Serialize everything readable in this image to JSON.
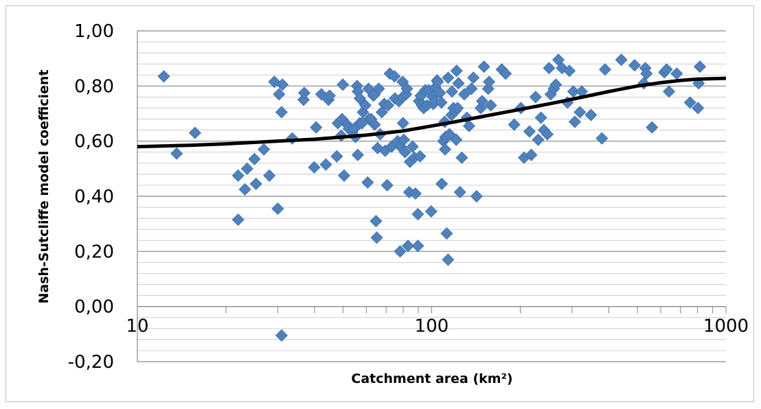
{
  "chart_data": {
    "type": "scatter",
    "title": "",
    "xlabel": "Catchment area (km²)",
    "ylabel": "Nash-Sutcliffe model coefficient",
    "x_scale": "log",
    "xlim": [
      10,
      1000
    ],
    "ylim": [
      -0.2,
      1.0
    ],
    "x_tick_labels": [
      "10",
      "100",
      "1000"
    ],
    "y_tick_labels": [
      "-0,20",
      "0,00",
      "0,20",
      "0,40",
      "0,60",
      "0,80",
      "1,00"
    ],
    "y_ticks": [
      -0.2,
      0.0,
      0.2,
      0.4,
      0.6,
      0.8,
      1.0
    ],
    "x_ticks": [
      10,
      100,
      1000
    ],
    "grid": true,
    "marker_color": "#4f81bd",
    "trend_color": "#000000",
    "series": [
      {
        "points": [
          [
            12.3,
            0.835
          ],
          [
            13.6,
            0.555
          ],
          [
            15.7,
            0.63
          ],
          [
            22.0,
            0.315
          ],
          [
            22.0,
            0.475
          ],
          [
            23.2,
            0.425
          ],
          [
            23.6,
            0.5
          ],
          [
            25.0,
            0.535
          ],
          [
            25.3,
            0.445
          ],
          [
            26.9,
            0.57
          ],
          [
            28.1,
            0.475
          ],
          [
            29.2,
            0.815
          ],
          [
            30.0,
            0.355
          ],
          [
            30.3,
            0.77
          ],
          [
            30.9,
            0.705
          ],
          [
            31.1,
            0.805
          ],
          [
            30.9,
            -0.105
          ],
          [
            33.6,
            0.61
          ],
          [
            36.7,
            0.75
          ],
          [
            36.9,
            0.775
          ],
          [
            39.9,
            0.505
          ],
          [
            40.5,
            0.65
          ],
          [
            42.2,
            0.77
          ],
          [
            43.7,
            0.515
          ],
          [
            44.6,
            0.75
          ],
          [
            45.0,
            0.765
          ],
          [
            47.6,
            0.545
          ],
          [
            48.0,
            0.665
          ],
          [
            49.3,
            0.62
          ],
          [
            49.6,
            0.68
          ],
          [
            49.9,
            0.805
          ],
          [
            50.4,
            0.475
          ],
          [
            51.6,
            0.66
          ],
          [
            52.3,
            0.645
          ],
          [
            53.7,
            0.635
          ],
          [
            54.5,
            0.645
          ],
          [
            55.1,
            0.615
          ],
          [
            55.8,
            0.8
          ],
          [
            56.1,
            0.78
          ],
          [
            56.1,
            0.55
          ],
          [
            57.0,
            0.755
          ],
          [
            57.0,
            0.665
          ],
          [
            58.0,
            0.665
          ],
          [
            58.4,
            0.705
          ],
          [
            59.5,
            0.73
          ],
          [
            60.6,
            0.45
          ],
          [
            61.0,
            0.79
          ],
          [
            61.3,
            0.68
          ],
          [
            62.3,
            0.68
          ],
          [
            63.4,
            0.765
          ],
          [
            64.0,
            0.66
          ],
          [
            64.0,
            0.77
          ],
          [
            64.7,
            0.31
          ],
          [
            65.1,
            0.25
          ],
          [
            65.5,
            0.575
          ],
          [
            66.1,
            0.79
          ],
          [
            66.8,
            0.625
          ],
          [
            67.7,
            0.705
          ],
          [
            69.0,
            0.735
          ],
          [
            69.5,
            0.565
          ],
          [
            70.6,
            0.44
          ],
          [
            71.1,
            0.73
          ],
          [
            72.1,
            0.845
          ],
          [
            73.1,
            0.58
          ],
          [
            74.8,
            0.835
          ],
          [
            75.0,
            0.755
          ],
          [
            76.6,
            0.6
          ],
          [
            77.4,
            0.745
          ],
          [
            78.1,
            0.2
          ],
          [
            78.4,
            0.58
          ],
          [
            79.7,
            0.76
          ],
          [
            79.7,
            0.815
          ],
          [
            79.9,
            0.665
          ],
          [
            80.4,
            0.605
          ],
          [
            81.2,
            0.56
          ],
          [
            81.9,
            0.77
          ],
          [
            82.4,
            0.79
          ],
          [
            83.1,
            0.22
          ],
          [
            83.9,
            0.415
          ],
          [
            84.4,
            0.525
          ],
          [
            86.1,
            0.58
          ],
          [
            87.3,
            0.54
          ],
          [
            88.1,
            0.41
          ],
          [
            89.8,
            0.335
          ],
          [
            89.8,
            0.22
          ],
          [
            90.6,
            0.745
          ],
          [
            91.3,
            0.545
          ],
          [
            91.8,
            0.765
          ],
          [
            92.2,
            0.765
          ],
          [
            92.7,
            0.73
          ],
          [
            93.9,
            0.72
          ],
          [
            95.2,
            0.785
          ],
          [
            96.5,
            0.73
          ],
          [
            97.7,
            0.785
          ],
          [
            99.6,
            0.345
          ],
          [
            100.9,
            0.76
          ],
          [
            101.3,
            0.735
          ],
          [
            102.4,
            0.745
          ],
          [
            102.8,
            0.795
          ],
          [
            104.3,
            0.82
          ],
          [
            104.8,
            0.815
          ],
          [
            106.7,
            0.775
          ],
          [
            107.9,
            0.74
          ],
          [
            108.2,
            0.445
          ],
          [
            109.6,
            0.6
          ],
          [
            110.7,
            0.67
          ],
          [
            111.1,
            0.57
          ],
          [
            111.4,
            0.615
          ],
          [
            112.5,
            0.265
          ],
          [
            113.7,
            0.17
          ],
          [
            113.7,
            0.83
          ],
          [
            114.9,
            0.625
          ],
          [
            116.9,
            0.695
          ],
          [
            117.2,
            0.78
          ],
          [
            118.6,
            0.72
          ],
          [
            120.5,
            0.71
          ],
          [
            121.2,
            0.605
          ],
          [
            121.5,
            0.855
          ],
          [
            122.5,
            0.72
          ],
          [
            123.3,
            0.81
          ],
          [
            124.8,
            0.415
          ],
          [
            126.6,
            0.54
          ],
          [
            129.1,
            0.77
          ],
          [
            131.7,
            0.685
          ],
          [
            134.0,
            0.655
          ],
          [
            136.5,
            0.79
          ],
          [
            138.6,
            0.83
          ],
          [
            142.1,
            0.4
          ],
          [
            146.8,
            0.72
          ],
          [
            148.4,
            0.745
          ],
          [
            150.6,
            0.87
          ],
          [
            155.6,
            0.79
          ],
          [
            156.7,
            0.815
          ],
          [
            158.8,
            0.73
          ],
          [
            173.1,
            0.86
          ],
          [
            178.3,
            0.845
          ],
          [
            190.7,
            0.66
          ],
          [
            201.0,
            0.72
          ],
          [
            206.0,
            0.54
          ],
          [
            215.0,
            0.635
          ],
          [
            218.0,
            0.55
          ],
          [
            225.5,
            0.76
          ],
          [
            230.1,
            0.605
          ],
          [
            235.1,
            0.685
          ],
          [
            240.7,
            0.64
          ],
          [
            247.3,
            0.625
          ],
          [
            250.6,
            0.865
          ],
          [
            253.7,
            0.77
          ],
          [
            260.1,
            0.79
          ],
          [
            264.2,
            0.805
          ],
          [
            269.5,
            0.895
          ],
          [
            277.3,
            0.865
          ],
          [
            289.3,
            0.74
          ],
          [
            293.8,
            0.855
          ],
          [
            303.0,
            0.78
          ],
          [
            306.5,
            0.67
          ],
          [
            318.9,
            0.705
          ],
          [
            323.5,
            0.78
          ],
          [
            347.7,
            0.695
          ],
          [
            378.8,
            0.61
          ],
          [
            388.4,
            0.86
          ],
          [
            440.9,
            0.895
          ],
          [
            489.2,
            0.875
          ],
          [
            525.6,
            0.81
          ],
          [
            532.2,
            0.865
          ],
          [
            536.9,
            0.845
          ],
          [
            560.5,
            0.65
          ],
          [
            617.3,
            0.85
          ],
          [
            628.7,
            0.86
          ],
          [
            640.5,
            0.78
          ],
          [
            680.2,
            0.845
          ],
          [
            755.1,
            0.74
          ],
          [
            803.3,
            0.72
          ],
          [
            807.6,
            0.81
          ],
          [
            815.4,
            0.87
          ]
        ]
      }
    ],
    "trend_line": [
      [
        10,
        0.58
      ],
      [
        15,
        0.585
      ],
      [
        20,
        0.59
      ],
      [
        30,
        0.6
      ],
      [
        40,
        0.607
      ],
      [
        50,
        0.615
      ],
      [
        60,
        0.622
      ],
      [
        70,
        0.63
      ],
      [
        80,
        0.637
      ],
      [
        100,
        0.655
      ],
      [
        120,
        0.67
      ],
      [
        150,
        0.69
      ],
      [
        200,
        0.715
      ],
      [
        250,
        0.735
      ],
      [
        300,
        0.752
      ],
      [
        400,
        0.78
      ],
      [
        500,
        0.8
      ],
      [
        600,
        0.812
      ],
      [
        700,
        0.82
      ],
      [
        800,
        0.825
      ],
      [
        1000,
        0.828
      ]
    ]
  }
}
